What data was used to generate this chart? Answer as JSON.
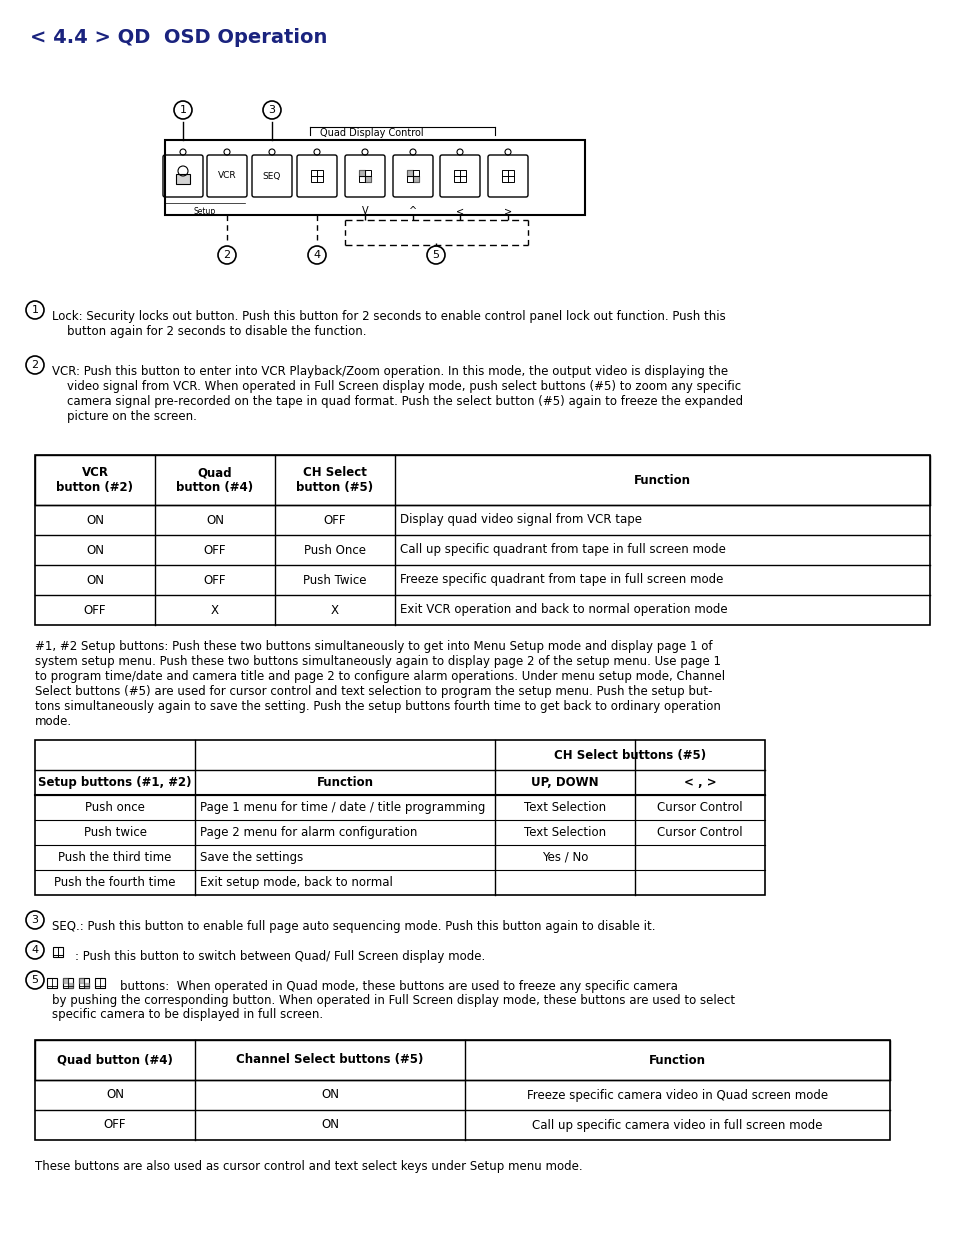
{
  "title": "< 4.4 > QD  OSD Operation",
  "title_color": "#1a237e",
  "title_fontsize": 14,
  "bg_color": "#ffffff",
  "text_color": "#000000",
  "body_fontsize": 8.5,
  "small_fontsize": 7.5,
  "table1_headers": [
    "VCR\nbutton (#2)",
    "Quad\nbutton (#4)",
    "CH Select\nbutton (#5)",
    "Function"
  ],
  "table1_rows": [
    [
      "ON",
      "ON",
      "OFF",
      "Display quad video signal from VCR tape"
    ],
    [
      "ON",
      "OFF",
      "Push Once",
      "Call up specific quadrant from tape in full screen mode"
    ],
    [
      "ON",
      "OFF",
      "Push Twice",
      "Freeze specific quadrant from tape in full screen mode"
    ],
    [
      "OFF",
      "X",
      "X",
      "Exit VCR operation and back to normal operation mode"
    ]
  ],
  "table2_headers_top": [
    "Setup buttons (#1, #2)",
    "Function",
    "CH Select buttons (#5)"
  ],
  "table2_headers_sub": [
    "",
    "",
    "UP, DOWN",
    "< , >"
  ],
  "table2_rows": [
    [
      "Push once",
      "Page 1 menu for time / date / title programming",
      "Text Selection",
      "Cursor Control"
    ],
    [
      "Push twice",
      "Page 2 menu for alarm configuration",
      "Text Selection",
      "Cursor Control"
    ],
    [
      "Push the third time",
      "Save the settings",
      "Yes / No",
      ""
    ],
    [
      "Push the fourth time",
      "Exit setup mode, back to normal",
      "",
      ""
    ]
  ],
  "table3_headers": [
    "Quad button (#4)",
    "Channel Select buttons (#5)",
    "Function"
  ],
  "table3_rows": [
    [
      "ON",
      "ON",
      "Freeze specific camera video in Quad screen mode"
    ],
    [
      "OFF",
      "ON",
      "Call up specific camera video in full screen mode"
    ]
  ],
  "para1_label": "1",
  "para1_text": "Lock: Security locks out button. Push this button for 2 seconds to enable control panel lock out function. Push this\n    button again for 2 seconds to disable the function.",
  "para2_label": "2",
  "para2_text": "VCR: Push this button to enter into VCR Playback/Zoom operation. In this mode, the output video is displaying the\n    video signal from VCR. When operated in Full Screen display mode, push select buttons (#5) to zoom any specific\n    camera signal pre-recorded on the tape in quad format. Push the select button (#5) again to freeze the expanded\n    picture on the screen.",
  "para3_label": "3",
  "para3_text": "SEQ.: Push this button to enable full page auto sequencing mode. Push this button again to disable it.",
  "para4_label": "4",
  "para4_text": ": Push this button to switch between Quad/ Full Screen display mode.",
  "para5_label": "5",
  "para5_text": "buttons:  When operated in Quad mode, these buttons are used to freeze any specific camera\n    by pushing the corresponding button. When operated in Full Screen display mode, these buttons are used to select\n    specific camera to be displayed in full screen.",
  "setup_text": "#1, #2 Setup buttons: Push these two buttons simultaneously to get into Menu Setup mode and display page 1 of\nsystem setup menu. Push these two buttons simultaneously again to display page 2 of the setup menu. Use page 1\nto program time/date and camera title and page 2 to configure alarm operations. Under menu setup mode, Channel\nSelect buttons (#5) are used for cursor control and text selection to program the setup menu. Push the setup but-\ntons simultaneously again to save the setting. Push the setup buttons fourth time to get back to ordinary operation\nmode.",
  "footer_text": "These buttons are also used as cursor control and text select keys under Setup menu mode."
}
